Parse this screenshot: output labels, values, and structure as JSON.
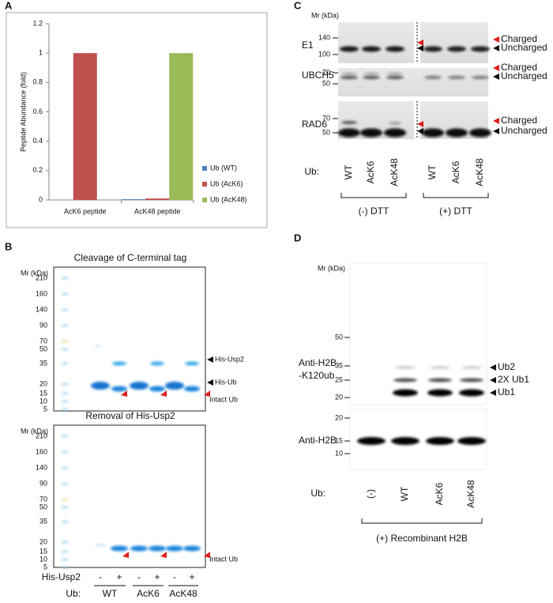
{
  "chart_data": {
    "type": "bar",
    "ylabel": "Peptide Abundance (fold)",
    "categories": [
      "AcK6 peptide",
      "AcK48 peptide"
    ],
    "series": [
      {
        "name": "Ub (WT)",
        "color": "#4f81bd",
        "values": [
          0,
          0.005
        ]
      },
      {
        "name": "Ub (AcK6)",
        "color": "#c0504d",
        "values": [
          1,
          0.01
        ]
      },
      {
        "name": "Ub (AcK48)",
        "color": "#9bbb59",
        "values": [
          0,
          1
        ]
      }
    ],
    "ylim": [
      0,
      1.2
    ],
    "yticks": [
      0,
      0.2,
      0.4,
      0.6,
      0.8,
      1,
      1.2
    ],
    "legend": "right"
  },
  "panel_labels": [
    "A",
    "B",
    "C",
    "D"
  ],
  "panel_b": {
    "gel_top": {
      "title": "Cleavage of C-terminal tag",
      "mr_label": "Mr (kDa)",
      "markers": [
        "210",
        "160",
        "140",
        "90",
        "70",
        "50",
        "35",
        "20",
        "15",
        "10",
        "5"
      ],
      "band_labels": [
        "His-Usp2",
        "His-Ub",
        "Intact Ub"
      ]
    },
    "gel_bottom": {
      "title": "Removal of His-Usp2",
      "mr_label": "Mr (kDa)",
      "markers": [
        "210",
        "160",
        "140",
        "90",
        "70",
        "50",
        "35",
        "20",
        "15",
        "10",
        "5"
      ],
      "band_labels": [
        "Intact Ub"
      ]
    },
    "his_usp2_label": "His-Usp2",
    "his_usp2_lanes": [
      "-",
      "+",
      "-",
      "+",
      "-",
      "+"
    ],
    "ub_label": "Ub:",
    "ub_groups": [
      "WT",
      "AcK6",
      "AcK48"
    ]
  },
  "panel_c": {
    "mr_label": "Mr (kDa)",
    "blots": [
      {
        "name": "E1",
        "markers": [
          "140",
          "100"
        ],
        "labels": [
          "Charged",
          "Uncharged"
        ]
      },
      {
        "name": "UBCH5",
        "markers": [
          "70",
          "50"
        ],
        "labels": [
          "Charged",
          "Uncharged"
        ]
      },
      {
        "name": "RAD6",
        "markers": [
          "70",
          "50"
        ],
        "labels": [
          "Charged",
          "Uncharged"
        ]
      }
    ],
    "ub_label": "Ub:",
    "lanes": [
      "WT",
      "AcK6",
      "AcK48",
      "WT",
      "AcK6",
      "AcK48"
    ],
    "conditions": [
      "(-) DTT",
      "(+) DTT"
    ]
  },
  "panel_d": {
    "mr_label": "Mr (kDa)",
    "blots": [
      {
        "name_lines": [
          "Anti-H2B",
          "-K120ub"
        ],
        "markers": [
          "50",
          "35",
          "25",
          "20"
        ],
        "labels": [
          "Ub2",
          "2X Ub1",
          "Ub1"
        ]
      },
      {
        "name_lines": [
          "Anti-H2B"
        ],
        "markers": [
          "20",
          "15",
          "10"
        ]
      }
    ],
    "ub_label": "Ub:",
    "lanes": [
      "(-)",
      "WT",
      "AcK6",
      "AcK48"
    ],
    "condition": "(+) Recombinant H2B"
  }
}
